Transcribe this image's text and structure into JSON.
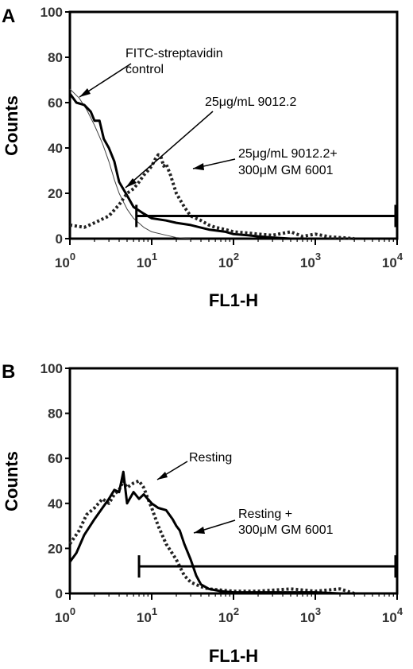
{
  "chart_data": [
    {
      "type": "line",
      "panel_label": "A",
      "xlabel": "FL1-H",
      "ylabel": "Counts",
      "x_scale": "log",
      "xlim": [
        1,
        10000
      ],
      "ylim": [
        0,
        100
      ],
      "y_ticks": [
        "0",
        "20",
        "40",
        "60",
        "80",
        "100"
      ],
      "x_ticks": [
        {
          "base": "10",
          "exp": "0"
        },
        {
          "base": "10",
          "exp": "1"
        },
        {
          "base": "10",
          "exp": "2"
        },
        {
          "base": "10",
          "exp": "3"
        },
        {
          "base": "10",
          "exp": "4"
        }
      ],
      "gate": {
        "x_start": 6.5,
        "x_end": 10000,
        "y": 10
      },
      "series": [
        {
          "style": "thin",
          "x": [
            1,
            1.3,
            1.6,
            2,
            2.5,
            3,
            3.5,
            4,
            5,
            6,
            8,
            10,
            15,
            20,
            30
          ],
          "y": [
            66,
            62,
            57,
            50,
            42,
            34,
            26,
            20,
            13,
            9,
            5,
            3,
            1.5,
            0.5,
            0
          ]
        },
        {
          "style": "solid",
          "x": [
            1,
            1.2,
            1.5,
            1.8,
            2,
            2.3,
            2.6,
            3,
            3.5,
            4,
            5,
            6,
            8,
            10,
            15,
            20,
            30,
            50,
            80,
            100,
            150,
            200,
            300,
            500
          ],
          "y": [
            64,
            60,
            59,
            56,
            52,
            52,
            44,
            40,
            34,
            25,
            19,
            14,
            11,
            9,
            8,
            7,
            6,
            4,
            3,
            2,
            1.5,
            1,
            0.5,
            0
          ]
        },
        {
          "style": "dotted",
          "x": [
            1,
            1.5,
            2,
            3,
            4,
            5,
            6,
            7,
            8,
            9,
            10,
            11,
            12,
            13,
            14,
            15,
            17,
            20,
            25,
            30,
            40,
            50,
            60,
            80,
            100,
            150,
            200,
            300,
            500,
            700,
            1000,
            1500,
            2000,
            3000
          ],
          "y": [
            6,
            5,
            7,
            10,
            15,
            20,
            22,
            25,
            28,
            30,
            32,
            35,
            37,
            36,
            32,
            33,
            28,
            20,
            14,
            10,
            8,
            6,
            5,
            4,
            3,
            2.5,
            2,
            1.5,
            3,
            1,
            2,
            0.8,
            0.5,
            0
          ]
        }
      ],
      "annotations": [
        {
          "lines": [
            "FITC-streptavidin",
            "control"
          ]
        },
        {
          "lines": [
            "25μg/mL  9012.2"
          ]
        },
        {
          "lines": [
            "25μg/mL  9012.2+",
            "300μM GM 6001"
          ]
        }
      ]
    },
    {
      "type": "line",
      "panel_label": "B",
      "xlabel": "FL1-H",
      "ylabel": "Counts",
      "x_scale": "log",
      "xlim": [
        1,
        10000
      ],
      "ylim": [
        0,
        100
      ],
      "y_ticks": [
        "0",
        "20",
        "40",
        "60",
        "80",
        "100"
      ],
      "x_ticks": [
        {
          "base": "10",
          "exp": "0"
        },
        {
          "base": "10",
          "exp": "1"
        },
        {
          "base": "10",
          "exp": "2"
        },
        {
          "base": "10",
          "exp": "3"
        },
        {
          "base": "10",
          "exp": "4"
        }
      ],
      "gate": {
        "x_start": 7,
        "x_end": 10000,
        "y": 12
      },
      "series": [
        {
          "style": "dotted",
          "x": [
            1,
            1.3,
            1.6,
            2,
            2.5,
            3,
            3.5,
            4,
            4.5,
            5,
            6,
            7,
            8,
            9,
            10,
            12,
            15,
            20,
            25,
            30,
            40,
            50,
            70,
            100,
            200,
            500,
            1000,
            2000,
            3000
          ],
          "y": [
            22,
            28,
            35,
            38,
            42,
            40,
            44,
            46,
            50,
            47,
            49,
            50,
            47,
            42,
            38,
            30,
            22,
            15,
            8,
            5,
            3,
            2,
            1.5,
            1,
            1,
            2,
            1,
            2,
            0
          ]
        },
        {
          "style": "solid",
          "x": [
            1,
            1.2,
            1.5,
            2,
            2.5,
            3,
            3.5,
            4,
            4.5,
            5,
            6,
            7,
            8,
            10,
            12,
            15,
            18,
            20,
            22,
            25,
            30,
            35,
            40,
            50,
            70,
            100,
            200,
            500,
            1000,
            2000,
            3000
          ],
          "y": [
            14,
            18,
            26,
            33,
            38,
            42,
            46,
            45,
            54,
            40,
            45,
            42,
            44,
            40,
            38,
            37,
            33,
            30,
            28,
            22,
            15,
            8,
            4,
            2,
            1,
            0.5,
            0.5,
            0.5,
            0.5,
            0,
            0
          ]
        }
      ],
      "annotations": [
        {
          "lines": [
            "Resting"
          ]
        },
        {
          "lines": [
            "Resting +",
            "300μM GM 6001"
          ]
        }
      ]
    }
  ]
}
